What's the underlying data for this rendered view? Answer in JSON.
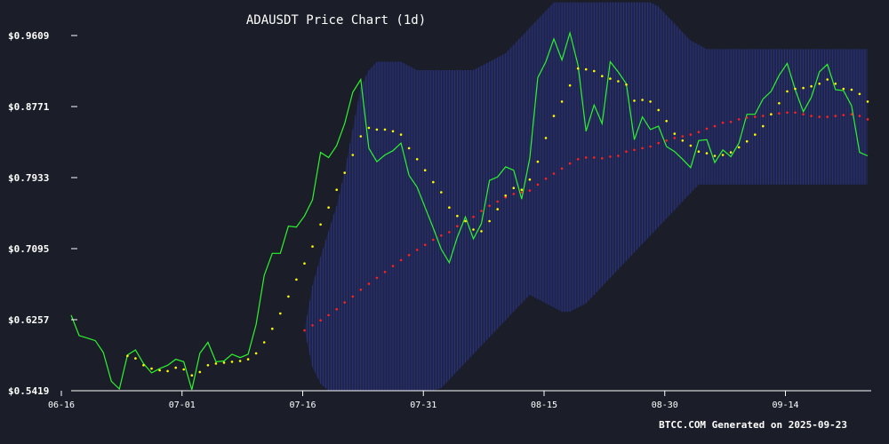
{
  "chart_data": {
    "type": "line",
    "title": "ADAUSDT Price Chart (1d)",
    "footer": "BTCC.COM Generated on 2025-09-23",
    "xlabel": "",
    "ylabel": "",
    "ylim": [
      0.5419,
      0.9609
    ],
    "yticks": [
      "$0.9609",
      "$0.8771",
      "$0.7933",
      "$0.7095",
      "$0.6257",
      "$0.5419"
    ],
    "xticks": [
      "06-16",
      "07-01",
      "07-16",
      "07-31",
      "08-15",
      "08-30",
      "09-14"
    ],
    "x_start": "06-16",
    "colors": {
      "background": "#1b1e29",
      "price": "#2df52d",
      "ma20": "#ffff00",
      "ma50": "#ff2222",
      "band": "#232a66"
    },
    "series": [
      {
        "name": "",
        "style": "line",
        "values": [
          0.631,
          0.607,
          0.604,
          0.601,
          0.587,
          0.553,
          0.544,
          0.584,
          0.59,
          0.574,
          0.563,
          0.568,
          0.572,
          0.579,
          0.576,
          0.543,
          0.586,
          0.599,
          0.576,
          0.577,
          0.585,
          0.581,
          0.585,
          0.62,
          0.678,
          0.704,
          0.704,
          0.736,
          0.735,
          0.748,
          0.767,
          0.823,
          0.817,
          0.831,
          0.857,
          0.894,
          0.909,
          0.828,
          0.812,
          0.82,
          0.825,
          0.834,
          0.796,
          0.782,
          0.758,
          0.734,
          0.709,
          0.693,
          0.723,
          0.747,
          0.721,
          0.739,
          0.79,
          0.794,
          0.806,
          0.802,
          0.768,
          0.816,
          0.911,
          0.93,
          0.957,
          0.932,
          0.964,
          0.926,
          0.848,
          0.879,
          0.857,
          0.93,
          0.918,
          0.904,
          0.838,
          0.865,
          0.85,
          0.854,
          0.83,
          0.824,
          0.815,
          0.805,
          0.837,
          0.838,
          0.811,
          0.826,
          0.818,
          0.834,
          0.868,
          0.868,
          0.886,
          0.895,
          0.914,
          0.928,
          0.897,
          0.871,
          0.888,
          0.918,
          0.927,
          0.897,
          0.896,
          0.878,
          0.823,
          0.819
        ]
      },
      {
        "name": "",
        "style": "dots",
        "values": [
          null,
          null,
          null,
          null,
          null,
          null,
          null,
          0.583,
          0.58,
          0.572,
          0.568,
          0.566,
          0.565,
          0.569,
          0.567,
          0.56,
          0.564,
          0.572,
          0.574,
          0.575,
          0.576,
          0.577,
          0.579,
          0.586,
          0.599,
          0.615,
          0.633,
          0.653,
          0.673,
          0.692,
          0.712,
          0.738,
          0.758,
          0.779,
          0.799,
          0.82,
          0.842,
          0.852,
          0.85,
          0.85,
          0.848,
          0.844,
          0.828,
          0.815,
          0.802,
          0.788,
          0.776,
          0.758,
          0.748,
          0.742,
          0.732,
          0.73,
          0.742,
          0.756,
          0.772,
          0.781,
          0.779,
          0.791,
          0.812,
          0.84,
          0.866,
          0.883,
          0.902,
          0.922,
          0.921,
          0.919,
          0.913,
          0.91,
          0.907,
          0.903,
          0.884,
          0.885,
          0.883,
          0.873,
          0.86,
          0.845,
          0.837,
          0.831,
          0.824,
          0.822,
          0.819,
          0.82,
          0.823,
          0.829,
          0.836,
          0.844,
          0.854,
          0.868,
          0.881,
          0.895,
          0.898,
          0.899,
          0.901,
          0.904,
          0.909,
          0.904,
          0.898,
          0.897,
          0.892,
          0.883
        ]
      },
      {
        "name": "",
        "style": "dots",
        "values": [
          null,
          null,
          null,
          null,
          null,
          null,
          null,
          null,
          null,
          null,
          null,
          null,
          null,
          null,
          null,
          null,
          null,
          null,
          null,
          null,
          null,
          null,
          null,
          null,
          null,
          null,
          null,
          null,
          null,
          0.613,
          0.619,
          0.625,
          0.631,
          0.638,
          0.646,
          0.653,
          0.661,
          0.668,
          0.675,
          0.682,
          0.689,
          0.696,
          0.702,
          0.708,
          0.714,
          0.72,
          0.725,
          0.729,
          0.736,
          0.742,
          0.747,
          0.754,
          0.76,
          0.765,
          0.77,
          0.774,
          0.776,
          0.778,
          0.785,
          0.792,
          0.798,
          0.804,
          0.81,
          0.815,
          0.817,
          0.817,
          0.816,
          0.818,
          0.819,
          0.824,
          0.826,
          0.828,
          0.83,
          0.834,
          0.837,
          0.84,
          0.842,
          0.844,
          0.847,
          0.851,
          0.854,
          0.858,
          0.859,
          0.862,
          0.864,
          0.865,
          0.866,
          0.868,
          0.869,
          0.87,
          0.87,
          0.868,
          0.866,
          0.865,
          0.865,
          0.866,
          0.867,
          0.868,
          0.866,
          0.862
        ]
      },
      {
        "name": "",
        "style": "band",
        "upper": [
          null,
          null,
          null,
          null,
          null,
          null,
          null,
          null,
          null,
          null,
          null,
          null,
          null,
          null,
          null,
          null,
          null,
          null,
          null,
          null,
          null,
          null,
          null,
          null,
          null,
          null,
          null,
          null,
          null,
          0.613,
          0.666,
          0.7,
          0.73,
          0.76,
          0.8,
          0.85,
          0.9,
          0.92,
          0.93,
          0.93,
          0.93,
          0.93,
          0.925,
          0.92,
          0.92,
          0.92,
          0.92,
          0.92,
          0.92,
          0.92,
          0.92,
          0.925,
          0.93,
          0.935,
          0.94,
          0.95,
          0.96,
          0.97,
          0.98,
          0.99,
          1.0,
          1.0,
          1.0,
          1.0,
          1.0,
          1.0,
          1.0,
          1.0,
          1.0,
          1.0,
          1.0,
          1.0,
          1.0,
          0.995,
          0.985,
          0.975,
          0.965,
          0.955,
          0.95,
          0.945,
          0.945,
          0.945,
          0.945,
          0.945,
          0.945,
          0.945,
          0.945,
          0.945,
          0.945,
          0.945,
          0.945,
          0.945,
          0.945,
          0.945,
          0.945,
          0.945,
          0.945,
          0.945,
          0.945,
          0.945
        ],
        "lower": [
          null,
          null,
          null,
          null,
          null,
          null,
          null,
          null,
          null,
          null,
          null,
          null,
          null,
          null,
          null,
          null,
          null,
          null,
          null,
          null,
          null,
          null,
          null,
          null,
          null,
          null,
          null,
          null,
          null,
          0.613,
          0.57,
          0.55,
          0.542,
          0.542,
          0.542,
          0.542,
          0.542,
          0.542,
          0.542,
          0.542,
          0.542,
          0.542,
          0.542,
          0.542,
          0.542,
          0.542,
          0.545,
          0.555,
          0.565,
          0.575,
          0.585,
          0.595,
          0.605,
          0.615,
          0.625,
          0.635,
          0.645,
          0.655,
          0.65,
          0.645,
          0.64,
          0.635,
          0.635,
          0.64,
          0.645,
          0.655,
          0.665,
          0.675,
          0.685,
          0.695,
          0.705,
          0.715,
          0.725,
          0.735,
          0.745,
          0.755,
          0.765,
          0.775,
          0.785,
          0.785,
          0.785,
          0.785,
          0.785,
          0.785,
          0.785,
          0.785,
          0.785,
          0.785,
          0.785,
          0.785,
          0.785,
          0.785,
          0.785,
          0.785,
          0.785,
          0.785,
          0.785,
          0.785,
          0.785,
          0.785
        ]
      }
    ]
  }
}
